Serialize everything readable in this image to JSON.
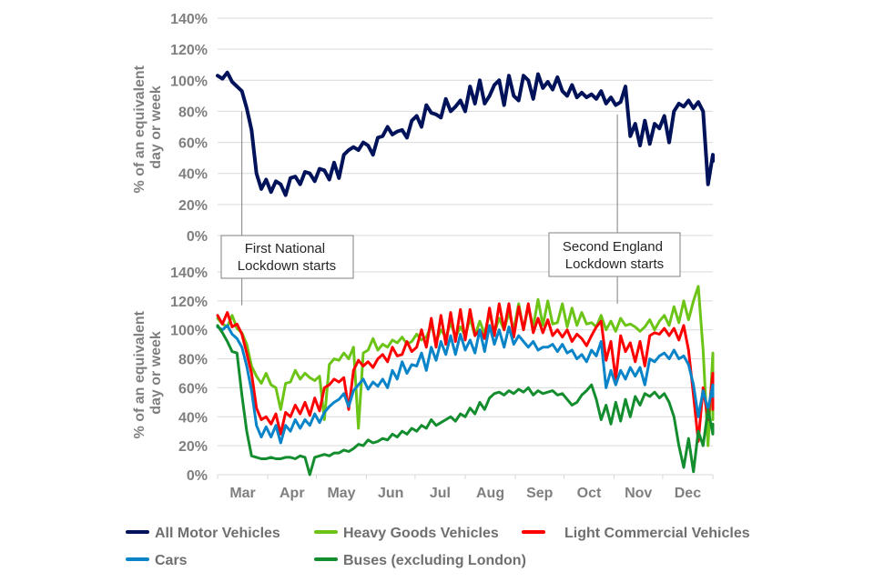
{
  "chart_data": [
    {
      "type": "line",
      "title": "",
      "xlabel": "",
      "ylabel": "% of an equivalent day or week",
      "ylim": [
        0,
        140
      ],
      "yticks": [
        "0%",
        "20%",
        "40%",
        "60%",
        "80%",
        "100%",
        "120%",
        "140%"
      ],
      "grid": true,
      "x_unit": "days since 1 Mar 2020",
      "x_step_days": 3,
      "xlim": [
        0,
        306
      ],
      "series": [
        {
          "name": "All Motor Vehicles",
          "color": "#00125a",
          "values": [
            103,
            101,
            105,
            99,
            96,
            93,
            82,
            68,
            40,
            30,
            36,
            28,
            35,
            33,
            26,
            37,
            38,
            33,
            41,
            40,
            35,
            43,
            42,
            36,
            47,
            37,
            52,
            55,
            57,
            55,
            60,
            58,
            52,
            63,
            64,
            70,
            65,
            67,
            68,
            63,
            74,
            77,
            70,
            84,
            79,
            78,
            76,
            88,
            80,
            83,
            87,
            80,
            96,
            85,
            100,
            85,
            90,
            97,
            100,
            84,
            103,
            90,
            87,
            103,
            100,
            88,
            104,
            95,
            99,
            94,
            102,
            93,
            90,
            97,
            89,
            92,
            89,
            91,
            88,
            93,
            85,
            89,
            84,
            86,
            96,
            64,
            72,
            58,
            74,
            59,
            72,
            69,
            77,
            60,
            80,
            85,
            83,
            87,
            82,
            86,
            80,
            33,
            52,
            48
          ]
        }
      ],
      "annotations": [
        {
          "text": [
            "First National",
            "Lockdown starts"
          ],
          "x_day": 15
        },
        {
          "text": [
            "Second England",
            "Lockdown starts"
          ],
          "x_day": 247
        }
      ]
    },
    {
      "type": "line",
      "title": "",
      "xlabel": "",
      "ylabel": "% of an equivalent day or week",
      "ylim": [
        0,
        140
      ],
      "yticks": [
        "0%",
        "20%",
        "40%",
        "60%",
        "80%",
        "100%",
        "120%",
        "140%"
      ],
      "xticks": [
        "Mar",
        "Apr",
        "May",
        "Jun",
        "Jul",
        "Aug",
        "Sep",
        "Oct",
        "Nov",
        "Dec"
      ],
      "month_start_days": [
        0,
        31,
        61,
        92,
        122,
        153,
        184,
        214,
        245,
        275
      ],
      "grid": true,
      "x_unit": "days since 1 Mar 2020",
      "x_step_days": 3,
      "xlim": [
        0,
        306
      ],
      "series": [
        {
          "name": "Heavy Goods Vehicles",
          "color": "#6cc417",
          "values": [
            108,
            104,
            102,
            110,
            101,
            98,
            90,
            75,
            68,
            63,
            70,
            62,
            60,
            45,
            63,
            64,
            72,
            66,
            70,
            67,
            65,
            68,
            38,
            76,
            80,
            79,
            84,
            80,
            88,
            32,
            84,
            86,
            94,
            86,
            90,
            88,
            93,
            91,
            95,
            90,
            92,
            97,
            93,
            95,
            103,
            92,
            100,
            95,
            105,
            95,
            102,
            96,
            108,
            96,
            106,
            97,
            112,
            98,
            108,
            100,
            112,
            100,
            118,
            100,
            116,
            102,
            121,
            103,
            120,
            104,
            105,
            118,
            102,
            115,
            103,
            112,
            104,
            105,
            102,
            110,
            100,
            106,
            99,
            108,
            103,
            104,
            102,
            99,
            102,
            107,
            100,
            106,
            110,
            103,
            116,
            105,
            120,
            107,
            120,
            130,
            86,
            20,
            84,
            38
          ]
        },
        {
          "name": "Light Commercial Vehicles",
          "color": "#ff0000",
          "values": [
            110,
            104,
            112,
            102,
            104,
            97,
            84,
            70,
            46,
            38,
            40,
            35,
            42,
            28,
            43,
            40,
            48,
            42,
            50,
            41,
            53,
            44,
            60,
            62,
            66,
            64,
            67,
            45,
            72,
            79,
            75,
            78,
            74,
            80,
            83,
            78,
            88,
            82,
            83,
            92,
            85,
            88,
            100,
            88,
            108,
            88,
            110,
            90,
            112,
            92,
            114,
            93,
            114,
            96,
            100,
            94,
            115,
            96,
            118,
            100,
            118,
            95,
            116,
            100,
            118,
            98,
            108,
            98,
            107,
            96,
            100,
            95,
            100,
            92,
            97,
            94,
            89,
            96,
            102,
            106,
            79,
            92,
            66,
            96,
            85,
            91,
            78,
            92,
            75,
            96,
            98,
            97,
            101,
            96,
            101,
            93,
            103,
            86,
            55,
            23,
            60,
            38,
            70,
            45
          ]
        },
        {
          "name": "Cars",
          "color": "#0a84c8",
          "values": [
            102,
            100,
            103,
            97,
            94,
            88,
            75,
            58,
            34,
            26,
            33,
            26,
            34,
            22,
            34,
            30,
            38,
            32,
            38,
            34,
            42,
            36,
            43,
            47,
            50,
            52,
            56,
            47,
            58,
            62,
            66,
            59,
            64,
            61,
            66,
            60,
            72,
            66,
            78,
            70,
            76,
            75,
            84,
            72,
            88,
            79,
            92,
            83,
            96,
            83,
            97,
            86,
            93,
            84,
            100,
            85,
            103,
            90,
            100,
            88,
            102,
            90,
            96,
            92,
            88,
            92,
            86,
            88,
            88,
            90,
            85,
            90,
            84,
            86,
            80,
            83,
            78,
            86,
            82,
            92,
            60,
            72,
            62,
            72,
            66,
            74,
            68,
            74,
            62,
            80,
            78,
            82,
            84,
            80,
            86,
            80,
            82,
            76,
            62,
            40,
            58,
            45,
            62,
            54
          ]
        },
        {
          "name": "Buses (excluding London)",
          "color": "#138d2e",
          "values": [
            103,
            98,
            92,
            85,
            84,
            55,
            30,
            13,
            12,
            11,
            11,
            12,
            11,
            11,
            12,
            12,
            11,
            13,
            12,
            0,
            12,
            13,
            14,
            13,
            15,
            15,
            17,
            16,
            18,
            21,
            20,
            24,
            22,
            23,
            25,
            24,
            28,
            26,
            30,
            28,
            32,
            30,
            34,
            32,
            38,
            34,
            36,
            38,
            40,
            37,
            42,
            40,
            46,
            42,
            50,
            45,
            53,
            56,
            57,
            55,
            58,
            56,
            59,
            57,
            60,
            55,
            58,
            56,
            57,
            58,
            55,
            56,
            52,
            48,
            50,
            55,
            58,
            62,
            52,
            38,
            48,
            35,
            50,
            37,
            52,
            40,
            54,
            48,
            56,
            54,
            57,
            53,
            56,
            50,
            40,
            20,
            5,
            25,
            2,
            30,
            20,
            45,
            28,
            35
          ]
        }
      ],
      "annotations": [
        {
          "text": [
            "First National",
            "Lockdown starts"
          ],
          "x_day": 15
        },
        {
          "text": [
            "Second England",
            "Lockdown starts"
          ],
          "x_day": 247
        }
      ]
    }
  ],
  "legend": {
    "placement": "bottom",
    "items": [
      {
        "label": "All Motor Vehicles",
        "color": "#00125a"
      },
      {
        "label": "Heavy Goods Vehicles",
        "color": "#6cc417"
      },
      {
        "label": "Light Commercial Vehicles",
        "color": "#ff0000"
      },
      {
        "label": "Cars",
        "color": "#0a84c8"
      },
      {
        "label": "Buses (excluding London)",
        "color": "#138d2e"
      }
    ]
  },
  "labels": {
    "ylabel_line1": "% of an equivalent",
    "ylabel_line2": "day or week",
    "annot1_line1": "First National",
    "annot1_line2": "Lockdown starts",
    "annot2_line1": "Second England",
    "annot2_line2": "Lockdown starts"
  }
}
